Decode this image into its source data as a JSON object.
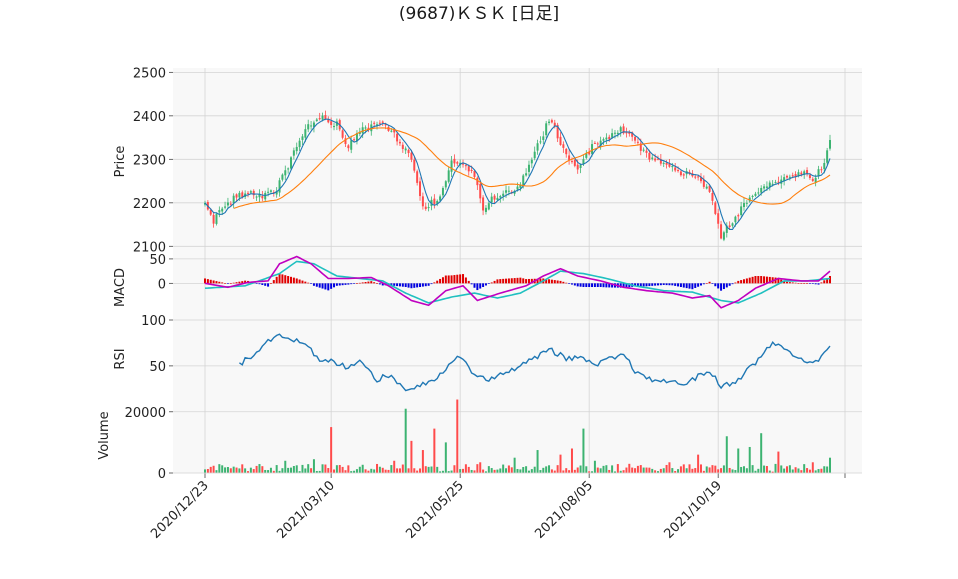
{
  "title": "(9687)ＫＳＫ [日足]",
  "colors": {
    "up": "#3cb371",
    "down": "#ff4b4b",
    "ma_short": "#1f77b4",
    "ma_long": "#ff7f0e",
    "macd": "#c000c0",
    "signal": "#20c0c0",
    "hist_pos": "#e00000",
    "hist_neg": "#0000e0",
    "rsi": "#1f77b4",
    "panel_bg": "#f8f8f8",
    "grid": "#d4d4d4"
  },
  "x_ticks": [
    "2020/12/23",
    "2021/03/10",
    "2021/05/25",
    "2021/08/05",
    "2021/10/19"
  ],
  "chart_data": [
    {
      "type": "candlestick",
      "panel": "price",
      "ylabel": "Price",
      "ylim": [
        2080,
        2510
      ],
      "yticks": [
        2100,
        2200,
        2300,
        2400,
        2500
      ],
      "num_sessions": 219,
      "x_tick_session_index": [
        0,
        44,
        89,
        134,
        179
      ],
      "close_anchors": [
        [
          0,
          2195
        ],
        [
          3,
          2160
        ],
        [
          8,
          2200
        ],
        [
          14,
          2225
        ],
        [
          20,
          2210
        ],
        [
          25,
          2235
        ],
        [
          30,
          2300
        ],
        [
          34,
          2360
        ],
        [
          40,
          2400
        ],
        [
          46,
          2380
        ],
        [
          50,
          2330
        ],
        [
          55,
          2370
        ],
        [
          62,
          2385
        ],
        [
          68,
          2340
        ],
        [
          72,
          2300
        ],
        [
          76,
          2190
        ],
        [
          82,
          2210
        ],
        [
          86,
          2290
        ],
        [
          90,
          2285
        ],
        [
          94,
          2260
        ],
        [
          97,
          2180
        ],
        [
          101,
          2215
        ],
        [
          106,
          2225
        ],
        [
          110,
          2245
        ],
        [
          114,
          2300
        ],
        [
          116,
          2330
        ],
        [
          120,
          2390
        ],
        [
          122,
          2370
        ],
        [
          126,
          2310
        ],
        [
          130,
          2275
        ],
        [
          135,
          2330
        ],
        [
          140,
          2350
        ],
        [
          145,
          2370
        ],
        [
          150,
          2340
        ],
        [
          155,
          2305
        ],
        [
          160,
          2290
        ],
        [
          166,
          2270
        ],
        [
          172,
          2255
        ],
        [
          176,
          2230
        ],
        [
          180,
          2120
        ],
        [
          184,
          2160
        ],
        [
          190,
          2210
        ],
        [
          196,
          2245
        ],
        [
          202,
          2255
        ],
        [
          208,
          2270
        ],
        [
          212,
          2255
        ],
        [
          216,
          2285
        ],
        [
          218,
          2350
        ]
      ],
      "ma_short": {
        "name": "",
        "window": 5
      },
      "ma_long": {
        "name": "",
        "window": 25
      }
    },
    {
      "type": "line+bar",
      "panel": "macd",
      "ylabel": "MACD",
      "yticks": [
        0,
        50
      ],
      "ylim": [
        -75,
        58
      ],
      "macd_anchors": [
        [
          0,
          0
        ],
        [
          8,
          -8
        ],
        [
          15,
          2
        ],
        [
          22,
          5
        ],
        [
          26,
          40
        ],
        [
          32,
          55
        ],
        [
          37,
          40
        ],
        [
          43,
          10
        ],
        [
          50,
          10
        ],
        [
          58,
          12
        ],
        [
          64,
          -5
        ],
        [
          72,
          -35
        ],
        [
          78,
          -45
        ],
        [
          84,
          -15
        ],
        [
          90,
          -5
        ],
        [
          95,
          -35
        ],
        [
          103,
          -20
        ],
        [
          112,
          -5
        ],
        [
          118,
          15
        ],
        [
          124,
          30
        ],
        [
          130,
          15
        ],
        [
          138,
          5
        ],
        [
          146,
          -8
        ],
        [
          154,
          -15
        ],
        [
          163,
          -20
        ],
        [
          170,
          -30
        ],
        [
          176,
          -25
        ],
        [
          180,
          -50
        ],
        [
          186,
          -35
        ],
        [
          192,
          -10
        ],
        [
          200,
          10
        ],
        [
          208,
          5
        ],
        [
          214,
          5
        ],
        [
          218,
          25
        ]
      ],
      "signal_anchors": [
        [
          0,
          -10
        ],
        [
          14,
          -5
        ],
        [
          26,
          20
        ],
        [
          32,
          45
        ],
        [
          38,
          40
        ],
        [
          46,
          15
        ],
        [
          54,
          10
        ],
        [
          62,
          5
        ],
        [
          70,
          -20
        ],
        [
          78,
          -40
        ],
        [
          86,
          -28
        ],
        [
          94,
          -20
        ],
        [
          102,
          -30
        ],
        [
          110,
          -20
        ],
        [
          118,
          5
        ],
        [
          124,
          25
        ],
        [
          132,
          20
        ],
        [
          140,
          10
        ],
        [
          150,
          -5
        ],
        [
          160,
          -15
        ],
        [
          170,
          -18
        ],
        [
          180,
          -35
        ],
        [
          186,
          -40
        ],
        [
          194,
          -20
        ],
        [
          202,
          5
        ],
        [
          210,
          5
        ],
        [
          218,
          10
        ]
      ]
    },
    {
      "type": "line",
      "panel": "rsi",
      "ylabel": "RSI",
      "yticks": [
        50,
        100
      ],
      "ylim": [
        15,
        100
      ],
      "rsi_anchors": [
        [
          12,
          52
        ],
        [
          16,
          60
        ],
        [
          22,
          78
        ],
        [
          26,
          85
        ],
        [
          30,
          80
        ],
        [
          36,
          70
        ],
        [
          40,
          55
        ],
        [
          44,
          55
        ],
        [
          50,
          48
        ],
        [
          54,
          58
        ],
        [
          60,
          35
        ],
        [
          64,
          40
        ],
        [
          70,
          25
        ],
        [
          76,
          30
        ],
        [
          82,
          40
        ],
        [
          86,
          55
        ],
        [
          90,
          60
        ],
        [
          94,
          40
        ],
        [
          100,
          35
        ],
        [
          106,
          45
        ],
        [
          110,
          50
        ],
        [
          116,
          60
        ],
        [
          120,
          70
        ],
        [
          122,
          65
        ],
        [
          126,
          58
        ],
        [
          130,
          60
        ],
        [
          136,
          50
        ],
        [
          140,
          56
        ],
        [
          146,
          62
        ],
        [
          150,
          45
        ],
        [
          154,
          35
        ],
        [
          160,
          34
        ],
        [
          166,
          30
        ],
        [
          170,
          35
        ],
        [
          176,
          45
        ],
        [
          180,
          27
        ],
        [
          186,
          35
        ],
        [
          190,
          48
        ],
        [
          194,
          60
        ],
        [
          198,
          75
        ],
        [
          202,
          70
        ],
        [
          206,
          60
        ],
        [
          210,
          52
        ],
        [
          214,
          58
        ],
        [
          218,
          72
        ]
      ]
    },
    {
      "type": "bar",
      "panel": "volume",
      "ylabel": "Volume",
      "yticks": [
        0,
        20000
      ],
      "ylim": [
        0,
        24500
      ],
      "spikes": [
        [
          2,
          2000
        ],
        [
          12,
          1500
        ],
        [
          28,
          4000
        ],
        [
          38,
          4500
        ],
        [
          44,
          15000
        ],
        [
          50,
          2500
        ],
        [
          66,
          4000
        ],
        [
          70,
          21000
        ],
        [
          72,
          10500
        ],
        [
          76,
          7500
        ],
        [
          80,
          14500
        ],
        [
          84,
          10000
        ],
        [
          88,
          24000
        ],
        [
          96,
          3500
        ],
        [
          108,
          5000
        ],
        [
          116,
          7500
        ],
        [
          124,
          6000
        ],
        [
          128,
          8000
        ],
        [
          132,
          14500
        ],
        [
          136,
          4000
        ],
        [
          148,
          3000
        ],
        [
          162,
          3500
        ],
        [
          172,
          6000
        ],
        [
          182,
          12000
        ],
        [
          186,
          8000
        ],
        [
          190,
          8500
        ],
        [
          194,
          13000
        ],
        [
          200,
          7000
        ],
        [
          212,
          3500
        ],
        [
          218,
          5000
        ]
      ]
    }
  ]
}
